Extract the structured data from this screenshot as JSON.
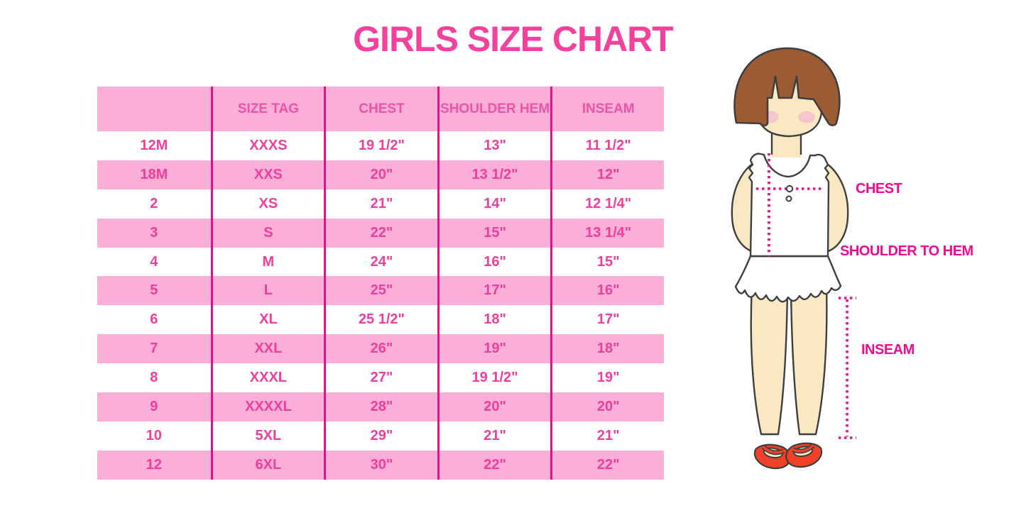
{
  "title": "GIRLS SIZE CHART",
  "chart_data": {
    "type": "table",
    "title": "GIRLS SIZE CHART",
    "columns": [
      "",
      "SIZE TAG",
      "CHEST",
      "SHOULDER HEM",
      "INSEAM"
    ],
    "rows": [
      [
        "12M",
        "XXXS",
        "19 1/2\"",
        "13\"",
        "11 1/2\""
      ],
      [
        "18M",
        "XXS",
        "20\"",
        "13 1/2\"",
        "12\""
      ],
      [
        "2",
        "XS",
        "21\"",
        "14\"",
        "12 1/4\""
      ],
      [
        "3",
        "S",
        "22\"",
        "15\"",
        "13 1/4\""
      ],
      [
        "4",
        "M",
        "24\"",
        "16\"",
        "15\""
      ],
      [
        "5",
        "L",
        "25\"",
        "17\"",
        "16\""
      ],
      [
        "6",
        "XL",
        "25 1/2\"",
        "18\"",
        "17\""
      ],
      [
        "7",
        "XXL",
        "26\"",
        "19\"",
        "18\""
      ],
      [
        "8",
        "XXXL",
        "27\"",
        "19 1/2\"",
        "19\""
      ],
      [
        "9",
        "XXXXL",
        "28\"",
        "20\"",
        "20\""
      ],
      [
        "10",
        "5XL",
        "29\"",
        "21\"",
        "21\""
      ],
      [
        "12",
        "6XL",
        "30\"",
        "22\"",
        "22\""
      ]
    ]
  },
  "figure": {
    "labels": {
      "chest": "CHEST",
      "shoulder_to_hem": "SHOULDER TO HEM",
      "inseam": "INSEAM"
    }
  },
  "colors": {
    "title_pink": "#F4419E",
    "row_pink": "#FAAED8",
    "divider_magenta": "#E01285",
    "table_text_pink": "#EF3F9C",
    "label_magenta": "#EE0C90",
    "hair_brown": "#9D5B33",
    "skin": "#FAE8C3",
    "blush": "#F4BFD0",
    "shoe_red": "#EF4128",
    "outline": "#3F3F3F"
  }
}
